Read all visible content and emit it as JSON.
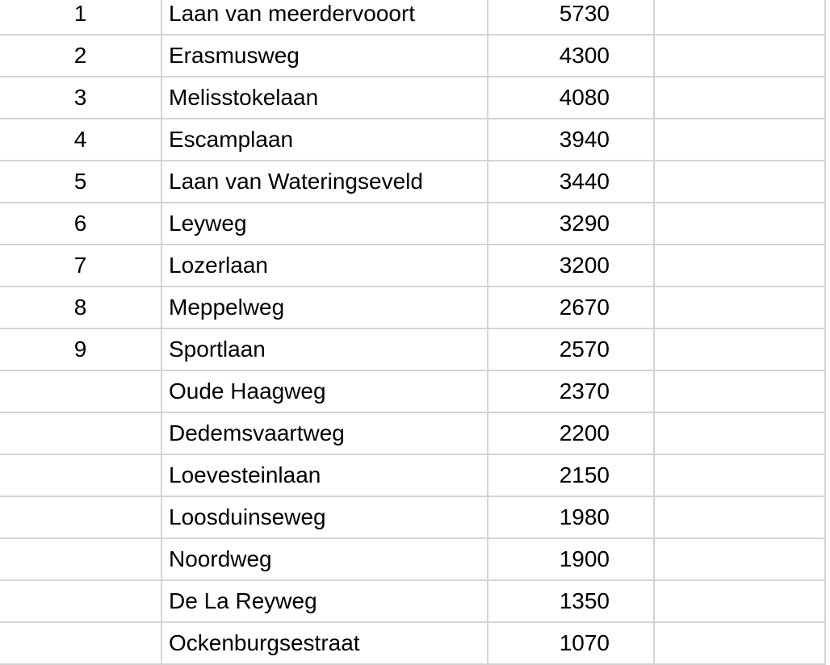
{
  "rows": [
    {
      "rank": "1",
      "street": "Laan van meerdervooort",
      "value": "5730"
    },
    {
      "rank": "2",
      "street": "Erasmusweg",
      "value": "4300"
    },
    {
      "rank": "3",
      "street": "Melisstokelaan",
      "value": "4080"
    },
    {
      "rank": "4",
      "street": "Escamplaan",
      "value": "3940"
    },
    {
      "rank": "5",
      "street": "Laan van Wateringseveld",
      "value": "3440"
    },
    {
      "rank": "6",
      "street": "Leyweg",
      "value": "3290"
    },
    {
      "rank": "7",
      "street": "Lozerlaan",
      "value": "3200"
    },
    {
      "rank": "8",
      "street": "Meppelweg",
      "value": "2670"
    },
    {
      "rank": "9",
      "street": "Sportlaan",
      "value": "2570"
    },
    {
      "rank": "",
      "street": "Oude Haagweg",
      "value": "2370"
    },
    {
      "rank": "",
      "street": "Dedemsvaartweg",
      "value": "2200"
    },
    {
      "rank": "",
      "street": "Loevesteinlaan",
      "value": "2150"
    },
    {
      "rank": "",
      "street": "Loosduinseweg",
      "value": "1980"
    },
    {
      "rank": "",
      "street": "Noordweg",
      "value": "1900"
    },
    {
      "rank": "",
      "street": "De La Reyweg",
      "value": "1350"
    },
    {
      "rank": "",
      "street": "Ockenburgsestraat",
      "value": "1070"
    }
  ]
}
